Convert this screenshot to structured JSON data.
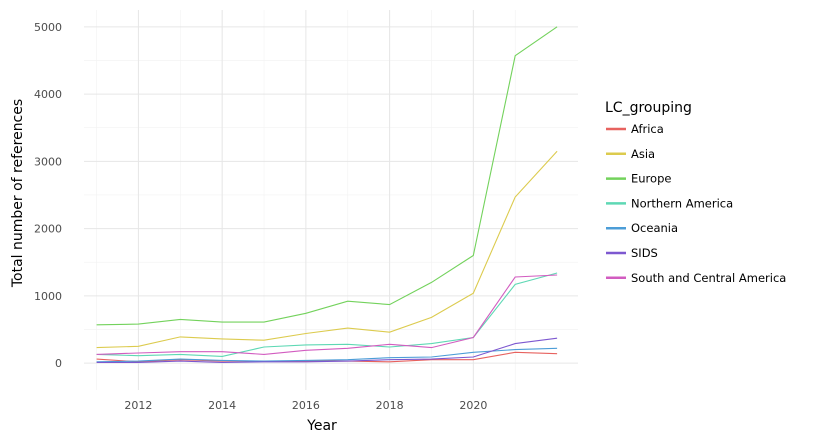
{
  "chart_data": {
    "type": "line",
    "xlabel": "Year",
    "ylabel": "Total number of references",
    "xlim": [
      2010.7,
      2022.5
    ],
    "ylim": [
      -400,
      5250
    ],
    "x_ticks": [
      2012,
      2014,
      2016,
      2018,
      2020
    ],
    "x_tick_labels": [
      "2012",
      "2014",
      "2016",
      "2018",
      "2020"
    ],
    "y_ticks": [
      0,
      1000,
      2000,
      3000,
      4000,
      5000
    ],
    "y_tick_labels": [
      "0",
      "1000",
      "2000",
      "3000",
      "4000",
      "5000"
    ],
    "grid": true,
    "legend_title": "LC_grouping",
    "legend_position": "right",
    "x": [
      2011,
      2012,
      2013,
      2014,
      2015,
      2016,
      2017,
      2018,
      2019,
      2020,
      2021,
      2022
    ],
    "series": [
      {
        "name": "Africa",
        "color": "#E7625F",
        "values": [
          60,
          20,
          50,
          30,
          30,
          30,
          30,
          20,
          50,
          50,
          160,
          140
        ]
      },
      {
        "name": "Asia",
        "color": "#DCCB4E",
        "values": [
          230,
          250,
          390,
          360,
          340,
          440,
          520,
          460,
          680,
          1040,
          2470,
          3150
        ]
      },
      {
        "name": "Europe",
        "color": "#73D25C",
        "values": [
          570,
          580,
          650,
          610,
          610,
          740,
          920,
          870,
          1200,
          1600,
          4570,
          5000
        ]
      },
      {
        "name": "Northern America",
        "color": "#5ED8B4",
        "values": [
          130,
          110,
          130,
          100,
          240,
          270,
          280,
          240,
          290,
          380,
          1170,
          1340
        ]
      },
      {
        "name": "Oceania",
        "color": "#4C9DD7",
        "values": [
          20,
          30,
          60,
          40,
          30,
          40,
          50,
          80,
          90,
          160,
          200,
          220
        ]
      },
      {
        "name": "SIDS",
        "color": "#7D58D0",
        "values": [
          10,
          10,
          30,
          10,
          20,
          20,
          30,
          50,
          60,
          90,
          290,
          370
        ]
      },
      {
        "name": "South and Central America",
        "color": "#D25CC0",
        "values": [
          130,
          150,
          170,
          170,
          130,
          190,
          220,
          280,
          230,
          380,
          1280,
          1310
        ]
      }
    ]
  }
}
